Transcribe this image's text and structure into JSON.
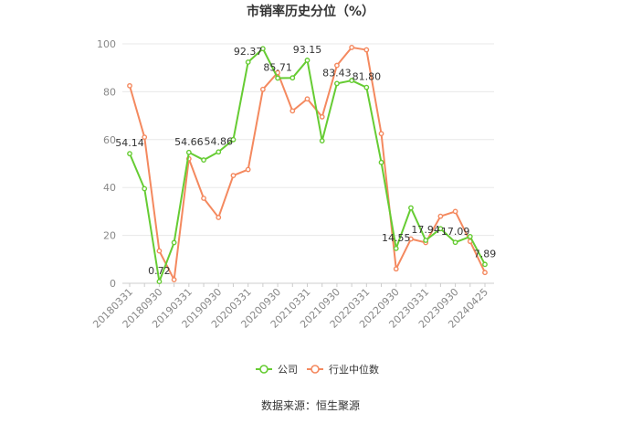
{
  "chart_data": {
    "type": "line",
    "title": "市销率历史分位（%）",
    "source": "数据来源：恒生聚源",
    "ylim": [
      0,
      100
    ],
    "yticks": [
      0,
      20,
      40,
      60,
      80,
      100
    ],
    "grid": true,
    "legend_position": "bottom-center",
    "categories": [
      "20180331",
      "",
      "20180930",
      "",
      "20190331",
      "",
      "20190930",
      "",
      "20200331",
      "",
      "20200930",
      "",
      "20210331",
      "",
      "20210930",
      "",
      "20220331",
      "",
      "20220930",
      "",
      "20230331",
      "",
      "20230930",
      "",
      "20240425"
    ],
    "x_labels": [
      "20180331",
      "20180930",
      "20190331",
      "20190930",
      "20200331",
      "20200930",
      "20210331",
      "20210930",
      "20220331",
      "20220930",
      "20230331",
      "20230930",
      "20240425"
    ],
    "series": [
      {
        "name": "公司",
        "color": "#66cc33",
        "values": [
          54.14,
          39.5,
          0.72,
          17.0,
          54.66,
          51.5,
          54.86,
          60.0,
          92.37,
          98.0,
          85.71,
          85.8,
          93.15,
          59.5,
          83.43,
          84.7,
          81.8,
          50.5,
          14.55,
          31.5,
          17.94,
          22.8,
          17.09,
          19.5,
          7.89
        ],
        "labels": {
          "0": "54.14",
          "2": "0.72",
          "4": "54.66",
          "6": "54.86",
          "8": "92.37",
          "10": "85.71",
          "12": "93.15",
          "14": "83.43",
          "16": "81.80",
          "18": "14.55",
          "20": "17.94",
          "22": "17.09",
          "24": "7.89"
        }
      },
      {
        "name": "行业中位数",
        "color": "#f4895f",
        "values": [
          82.5,
          61.0,
          13.5,
          1.5,
          52.0,
          35.5,
          27.5,
          45.0,
          47.5,
          81.0,
          88.0,
          72.0,
          77.0,
          69.5,
          91.0,
          98.5,
          97.5,
          62.5,
          6.0,
          18.5,
          17.0,
          28.0,
          30.0,
          17.5,
          4.5
        ]
      }
    ]
  }
}
